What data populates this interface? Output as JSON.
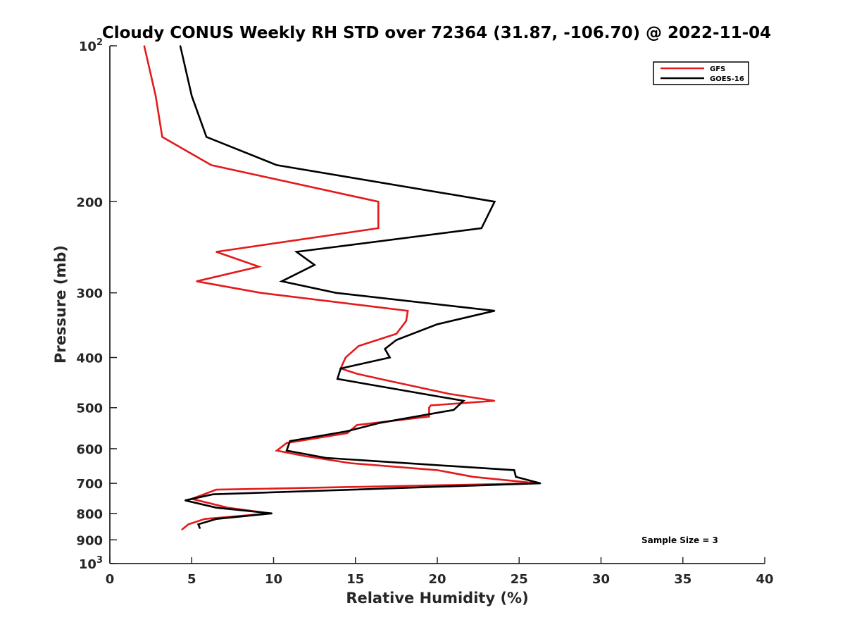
{
  "chart_data": {
    "type": "line",
    "title": "Cloudy CONUS Weekly RH STD over 72364 (31.87, -106.70) @ 2022-11-04",
    "xlabel": "Relative Humidity (%)",
    "ylabel": "Pressure (mb)",
    "xlim": [
      0,
      40
    ],
    "ylim": [
      100,
      1000
    ],
    "yscale": "log",
    "yreversed": true,
    "xticks": [
      "0",
      "5",
      "10",
      "15",
      "20",
      "25",
      "30",
      "35",
      "40"
    ],
    "yticks": [
      {
        "value": 100,
        "base": "10",
        "exp": "2"
      },
      {
        "value": 200,
        "label": "200"
      },
      {
        "value": 300,
        "label": "300"
      },
      {
        "value": 400,
        "label": "400"
      },
      {
        "value": 500,
        "label": "500"
      },
      {
        "value": 600,
        "label": "600"
      },
      {
        "value": 700,
        "label": "700"
      },
      {
        "value": 800,
        "label": "800"
      },
      {
        "value": 900,
        "label": "900"
      },
      {
        "value": 1000,
        "base": "10",
        "exp": "3"
      }
    ],
    "legend_position": "top-right",
    "annotation": "Sample Size = 3",
    "series": [
      {
        "name": "GFS",
        "color": "#e31a1c",
        "points": [
          [
            2.1,
            100
          ],
          [
            2.8,
            125
          ],
          [
            3.2,
            150
          ],
          [
            6.2,
            170
          ],
          [
            16.4,
            200
          ],
          [
            16.4,
            225
          ],
          [
            6.5,
            250
          ],
          [
            9.1,
            267
          ],
          [
            5.3,
            285
          ],
          [
            9.2,
            300
          ],
          [
            18.2,
            325
          ],
          [
            18.1,
            340
          ],
          [
            17.5,
            360
          ],
          [
            15.2,
            380
          ],
          [
            14.4,
            400
          ],
          [
            14.1,
            420
          ],
          [
            15.1,
            430
          ],
          [
            16.5,
            440
          ],
          [
            20.7,
            470
          ],
          [
            23.5,
            485
          ],
          [
            19.6,
            495
          ],
          [
            19.5,
            500
          ],
          [
            19.5,
            520
          ],
          [
            15.1,
            540
          ],
          [
            14.5,
            560
          ],
          [
            10.8,
            585
          ],
          [
            10.2,
            605
          ],
          [
            11.9,
            620
          ],
          [
            14.7,
            640
          ],
          [
            20.0,
            660
          ],
          [
            22.2,
            680
          ],
          [
            26.1,
            700
          ],
          [
            6.5,
            720
          ],
          [
            5.0,
            750
          ],
          [
            7.2,
            780
          ],
          [
            9.8,
            800
          ],
          [
            5.8,
            820
          ],
          [
            4.8,
            840
          ],
          [
            4.4,
            860
          ]
        ]
      },
      {
        "name": "GOES-16",
        "color": "#000000",
        "points": [
          [
            4.3,
            100
          ],
          [
            5.0,
            125
          ],
          [
            5.9,
            150
          ],
          [
            10.2,
            170
          ],
          [
            23.5,
            200
          ],
          [
            22.7,
            225
          ],
          [
            11.4,
            250
          ],
          [
            12.5,
            265
          ],
          [
            10.5,
            285
          ],
          [
            13.8,
            300
          ],
          [
            23.5,
            325
          ],
          [
            20.0,
            345
          ],
          [
            17.5,
            370
          ],
          [
            16.8,
            385
          ],
          [
            17.1,
            400
          ],
          [
            14.1,
            420
          ],
          [
            13.9,
            440
          ],
          [
            21.6,
            485
          ],
          [
            21.0,
            505
          ],
          [
            16.5,
            535
          ],
          [
            14.5,
            555
          ],
          [
            11.0,
            580
          ],
          [
            10.8,
            605
          ],
          [
            13.2,
            625
          ],
          [
            24.7,
            660
          ],
          [
            24.8,
            680
          ],
          [
            26.3,
            700
          ],
          [
            6.3,
            735
          ],
          [
            4.6,
            755
          ],
          [
            6.5,
            780
          ],
          [
            9.9,
            800
          ],
          [
            6.5,
            820
          ],
          [
            5.4,
            840
          ],
          [
            5.5,
            855
          ]
        ]
      }
    ]
  }
}
